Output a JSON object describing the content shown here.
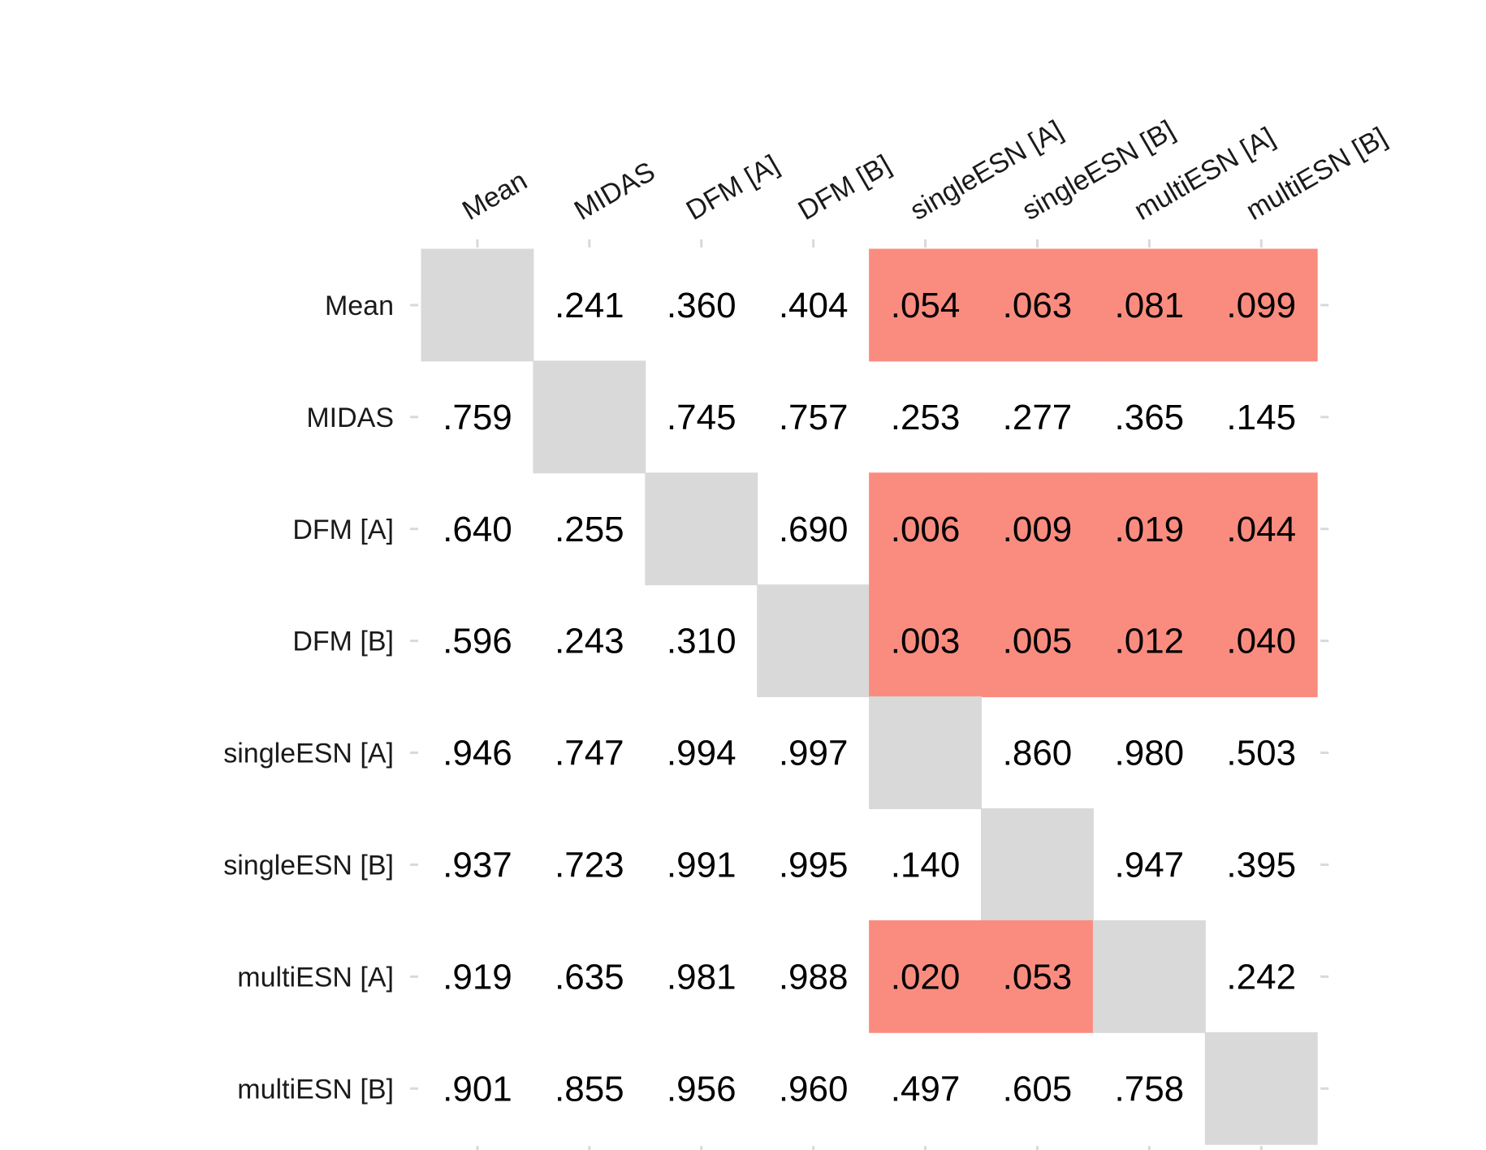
{
  "chart_data": {
    "type": "heatmap",
    "rows": [
      "Mean",
      "MIDAS",
      "DFM [A]",
      "DFM [B]",
      "singleESN [A]",
      "singleESN [B]",
      "multiESN [A]",
      "multiESN [B]"
    ],
    "columns": [
      "Mean",
      "MIDAS",
      "DFM [A]",
      "DFM [B]",
      "singleESN [A]",
      "singleESN [B]",
      "multiESN [A]",
      "multiESN [B]"
    ],
    "values": [
      [
        null,
        ".241",
        ".360",
        ".404",
        ".054",
        ".063",
        ".081",
        ".099"
      ],
      [
        ".759",
        null,
        ".745",
        ".757",
        ".253",
        ".277",
        ".365",
        ".145"
      ],
      [
        ".640",
        ".255",
        null,
        ".690",
        ".006",
        ".009",
        ".019",
        ".044"
      ],
      [
        ".596",
        ".243",
        ".310",
        null,
        ".003",
        ".005",
        ".012",
        ".040"
      ],
      [
        ".946",
        ".747",
        ".994",
        ".997",
        null,
        ".860",
        ".980",
        ".503"
      ],
      [
        ".937",
        ".723",
        ".991",
        ".995",
        ".140",
        null,
        ".947",
        ".395"
      ],
      [
        ".919",
        ".635",
        ".981",
        ".988",
        ".020",
        ".053",
        null,
        ".242"
      ],
      [
        ".901",
        ".855",
        ".956",
        ".960",
        ".497",
        ".605",
        ".758",
        null
      ]
    ],
    "highlight_threshold": 0.1,
    "colors": {
      "diagonal": "#d9d9d9",
      "highlight": "#fa8c7f",
      "background": "#ffffff"
    }
  }
}
